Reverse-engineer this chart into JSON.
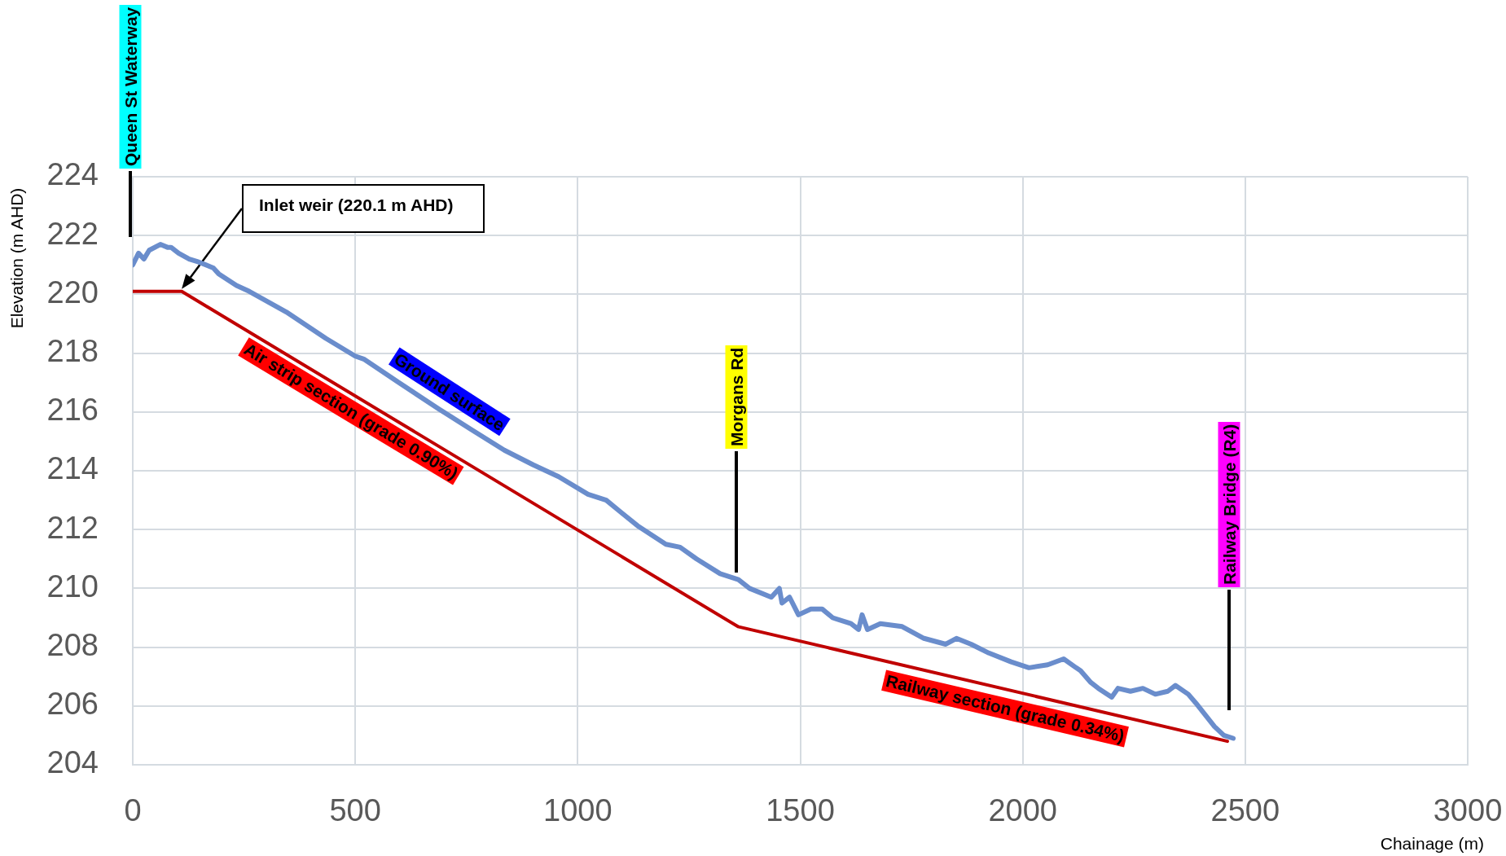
{
  "chart_data": {
    "type": "line",
    "xlabel": "Chainage (m)",
    "ylabel": "Elevation (m AHD)",
    "xlim": [
      0,
      3000
    ],
    "xticks": [
      0,
      500,
      1000,
      1500,
      2000,
      2500,
      3000
    ],
    "ylim": [
      204,
      224
    ],
    "yticks": [
      204,
      206,
      208,
      210,
      212,
      214,
      216,
      218,
      220,
      222,
      224
    ],
    "grid": true,
    "legend": false,
    "marker": "none",
    "line_style": "solid",
    "series": [
      {
        "name": "Ground surface",
        "color": "#6a8dcc",
        "x": [
          0,
          13,
          25,
          37,
          62,
          78,
          86,
          103,
          127,
          148,
          181,
          193,
          233,
          262,
          345,
          434,
          500,
          519,
          598,
          688,
          761,
          835,
          900,
          957,
          1023,
          1064,
          1096,
          1137,
          1198,
          1230,
          1267,
          1320,
          1361,
          1386,
          1435,
          1453,
          1459,
          1476,
          1496,
          1524,
          1549,
          1573,
          1614,
          1631,
          1639,
          1651,
          1680,
          1729,
          1778,
          1827,
          1851,
          1884,
          1924,
          1974,
          2014,
          2056,
          2092,
          2120,
          2130,
          2153,
          2170,
          2200,
          2214,
          2242,
          2270,
          2298,
          2326,
          2343,
          2372,
          2389,
          2410,
          2431,
          2452,
          2473
        ],
        "values": [
          221.0,
          221.4,
          221.2,
          221.5,
          221.7,
          221.6,
          221.6,
          221.4,
          221.2,
          221.1,
          220.9,
          220.7,
          220.3,
          220.1,
          219.4,
          218.5,
          217.9,
          217.8,
          217.0,
          216.1,
          215.4,
          214.7,
          214.2,
          213.8,
          213.2,
          213.0,
          212.6,
          212.1,
          211.5,
          211.4,
          211.0,
          210.5,
          210.3,
          210.0,
          209.7,
          210.0,
          209.5,
          209.7,
          209.1,
          209.3,
          209.3,
          209.0,
          208.8,
          208.6,
          209.1,
          208.6,
          208.8,
          208.7,
          208.3,
          208.1,
          208.3,
          208.1,
          207.8,
          207.5,
          207.3,
          207.4,
          207.6,
          207.3,
          207.2,
          206.8,
          206.6,
          206.3,
          206.6,
          206.5,
          206.6,
          206.4,
          206.5,
          206.7,
          206.4,
          206.1,
          205.7,
          205.3,
          205.0,
          204.9
        ]
      },
      {
        "color": "#c00000",
        "x": [
          0,
          110,
          1360,
          2460
        ],
        "values": [
          220.1,
          220.1,
          208.7,
          204.8
        ]
      }
    ],
    "annotations": [
      "Queen St Waterway",
      "Inlet weir (220.1 m AHD)",
      {
        "text": "Air strip section (grade 0.90%)",
        "x": 510,
        "y": 216.5
      },
      "Morgans Rd",
      {
        "text": "Railway section (grade 0.34%)",
        "x": 1970,
        "y": 206.5
      },
      "Railway Bridge (R4)"
    ]
  }
}
